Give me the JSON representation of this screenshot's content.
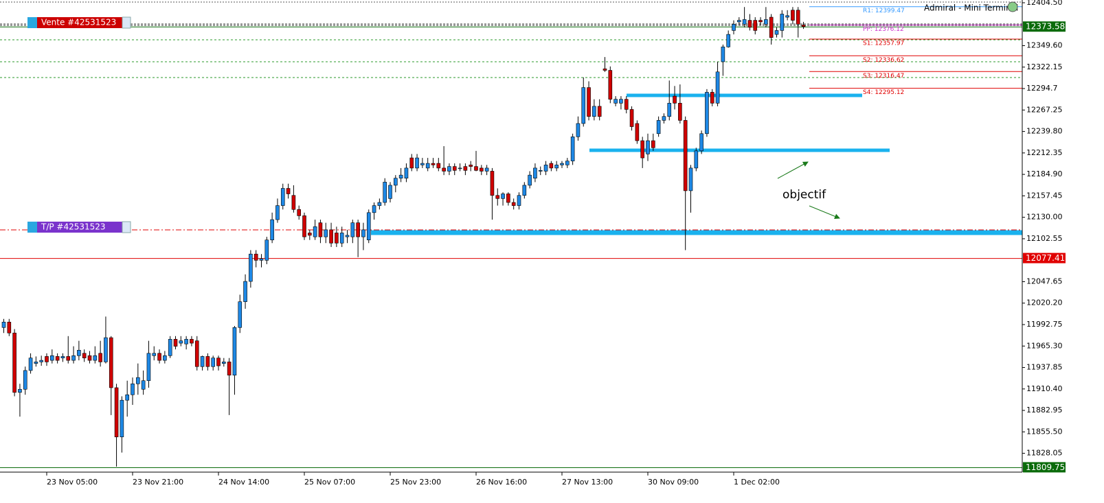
{
  "chart_data": {
    "type": "candlestick",
    "categories": [
      null,
      null,
      null,
      null,
      null,
      null,
      null,
      null,
      "23 Nov 05:00",
      null,
      null,
      null,
      null,
      null,
      null,
      null,
      null,
      null,
      null,
      null,
      null,
      null,
      null,
      null,
      "23 Nov 21:00",
      null,
      null,
      null,
      null,
      null,
      null,
      null,
      null,
      null,
      null,
      null,
      null,
      null,
      null,
      null,
      "24 Nov 14:00",
      null,
      null,
      null,
      null,
      null,
      null,
      null,
      null,
      null,
      null,
      null,
      null,
      null,
      null,
      null,
      "25 Nov 07:00",
      null,
      null,
      null,
      null,
      null,
      null,
      null,
      null,
      null,
      null,
      null,
      null,
      null,
      null,
      null,
      "25 Nov 23:00",
      null,
      null,
      null,
      null,
      null,
      null,
      null,
      null,
      null,
      null,
      null,
      null,
      null,
      null,
      null,
      "26 Nov 16:00",
      null,
      null,
      null,
      null,
      null,
      null,
      null,
      null,
      null,
      null,
      null,
      null,
      null,
      null,
      null,
      "27 Nov 13:00",
      null,
      null,
      null,
      null,
      null,
      null,
      null,
      null,
      null,
      null,
      null,
      null,
      null,
      null,
      null,
      "30 Nov 09:00",
      null,
      null,
      null,
      null,
      null,
      null,
      null,
      null,
      null,
      null,
      null,
      null,
      null,
      null,
      null,
      "1 Dec 02:00",
      null,
      null,
      null,
      null,
      null,
      null,
      null,
      null,
      null,
      null,
      null,
      null,
      null
    ],
    "open": [
      11989,
      11996,
      11982,
      11906,
      11910,
      11934,
      11943,
      11945,
      11952,
      11947,
      11952,
      11950,
      11952,
      11947,
      11953,
      11956,
      11953,
      11947,
      11956,
      11945,
      11976,
      11912,
      11849,
      11896,
      11903,
      11917,
      11910,
      11921,
      11953,
      11956,
      11947,
      11953,
      11974,
      11969,
      11968,
      11974,
      11972,
      11939,
      11952,
      11939,
      11950,
      11943,
      11945,
      11928,
      11989,
      12022,
      12048,
      12083,
      12075,
      12075,
      12101,
      12127,
      12145,
      12167,
      12158,
      12140,
      12132,
      12110,
      12105,
      12123,
      12105,
      12114,
      12110,
      12097,
      12105,
      12105,
      12123,
      12105,
      12101,
      12136,
      12145,
      12149,
      12154,
      12171,
      12180,
      12180,
      12206,
      12193,
      12197,
      12193,
      12199,
      12199,
      12193,
      12189,
      12195,
      12193,
      12195,
      12197,
      12195,
      12193,
      12189,
      12189,
      12158,
      12154,
      12160,
      12149,
      12145,
      12158,
      12171,
      12180,
      12189,
      12189,
      12199,
      12193,
      12197,
      12197,
      12202,
      12233,
      12250,
      12296,
      12259,
      12272,
      12320,
      12318,
      12276,
      12276,
      12281,
      12268,
      12250,
      12228,
      12211,
      12228,
      12237,
      12254,
      12259,
      12285,
      12276,
      12254,
      12164,
      12193,
      12215,
      12237,
      12290,
      12276,
      12329,
      12348,
      12369,
      12380,
      12377,
      12382,
      12382,
      12382,
      12377,
      12386,
      12364,
      12369,
      12386,
      12395,
      12395,
      12376
    ],
    "high": [
      12000,
      12000,
      11987,
      11917,
      11939,
      11956,
      11952,
      11953,
      11956,
      11961,
      11956,
      11956,
      11978,
      11965,
      11972,
      11961,
      11959,
      11965,
      11972,
      12003,
      11978,
      11917,
      11901,
      11921,
      11925,
      11943,
      11934,
      11972,
      11965,
      11961,
      11959,
      11978,
      11978,
      11978,
      11978,
      11978,
      11978,
      11953,
      11956,
      11953,
      11953,
      11950,
      11950,
      11991,
      12031,
      12057,
      12088,
      12088,
      12083,
      12105,
      12136,
      12154,
      12173,
      12173,
      12171,
      12145,
      12136,
      12114,
      12127,
      12127,
      12123,
      12123,
      12118,
      12118,
      12114,
      12127,
      12127,
      12123,
      12140,
      12149,
      12154,
      12180,
      12175,
      12184,
      12193,
      12199,
      12211,
      12211,
      12206,
      12206,
      12206,
      12206,
      12221,
      12199,
      12199,
      12199,
      12199,
      12202,
      12215,
      12197,
      12197,
      12193,
      12167,
      12162,
      12162,
      12154,
      12162,
      12175,
      12189,
      12199,
      12195,
      12202,
      12202,
      12202,
      12202,
      12206,
      12237,
      12259,
      12309,
      12304,
      12281,
      12281,
      12335,
      12323,
      12285,
      12285,
      12285,
      12272,
      12254,
      12233,
      12237,
      12237,
      12259,
      12263,
      12305,
      12298,
      12300,
      12259,
      12197,
      12219,
      12241,
      12294,
      12294,
      12329,
      12351,
      12369,
      12382,
      12386,
      12399,
      12390,
      12386,
      12386,
      12399,
      12390,
      12373,
      12395,
      12395,
      12399,
      12399,
      12380
    ],
    "low": [
      11982,
      11978,
      11901,
      11875,
      11903,
      11930,
      11939,
      11940,
      11940,
      11943,
      11943,
      11945,
      11943,
      11943,
      11947,
      11945,
      11943,
      11943,
      11939,
      11943,
      11877,
      11811,
      11829,
      11875,
      11890,
      11903,
      11903,
      11912,
      11947,
      11943,
      11943,
      11950,
      11961,
      11965,
      11961,
      11965,
      11934,
      11934,
      11934,
      11934,
      11934,
      11939,
      11877,
      11903,
      11982,
      12013,
      12040,
      12066,
      12066,
      12070,
      12097,
      12123,
      12140,
      12154,
      12136,
      12127,
      12101,
      12101,
      12101,
      12097,
      12097,
      12092,
      12092,
      12092,
      12097,
      12097,
      12079,
      12088,
      12097,
      12127,
      12140,
      12145,
      12149,
      12162,
      12175,
      12175,
      12189,
      12189,
      12193,
      12189,
      12193,
      12189,
      12184,
      12184,
      12184,
      12189,
      12184,
      12189,
      12189,
      12184,
      12184,
      12127,
      12145,
      12145,
      12145,
      12140,
      12140,
      12154,
      12167,
      12175,
      12184,
      12184,
      12189,
      12189,
      12193,
      12193,
      12197,
      12228,
      12246,
      12254,
      12254,
      12254,
      12316,
      12276,
      12272,
      12268,
      12263,
      12241,
      12224,
      12193,
      12202,
      12215,
      12233,
      12250,
      12254,
      12268,
      12250,
      12088,
      12136,
      12189,
      12211,
      12233,
      12272,
      12272,
      12311,
      12347,
      12364,
      12376,
      12373,
      12369,
      12364,
      12376,
      12373,
      12351,
      12360,
      12360,
      12382,
      12377,
      12360,
      12371
    ],
    "close": [
      11996,
      11982,
      11906,
      11910,
      11934,
      11950,
      11945,
      11947,
      11945,
      11953,
      11947,
      11952,
      11947,
      11953,
      11960,
      11950,
      11947,
      11953,
      11945,
      11976,
      11912,
      11849,
      11896,
      11903,
      11917,
      11925,
      11921,
      11956,
      11956,
      11947,
      11953,
      11974,
      11965,
      11972,
      11974,
      11969,
      11939,
      11952,
      11939,
      11950,
      11940,
      11945,
      11928,
      11989,
      12022,
      12048,
      12083,
      12075,
      12077,
      12101,
      12127,
      12145,
      12167,
      12160,
      12140,
      12132,
      12105,
      12107,
      12118,
      12105,
      12114,
      12097,
      12097,
      12110,
      12107,
      12123,
      12105,
      12114,
      12136,
      12145,
      12149,
      12175,
      12171,
      12180,
      12184,
      12193,
      12193,
      12206,
      12199,
      12199,
      12197,
      12193,
      12189,
      12195,
      12190,
      12193,
      12190,
      12195,
      12190,
      12189,
      12193,
      12158,
      12154,
      12160,
      12149,
      12145,
      12158,
      12171,
      12184,
      12193,
      12190,
      12197,
      12193,
      12197,
      12199,
      12202,
      12233,
      12250,
      12296,
      12259,
      12272,
      12259,
      12318,
      12281,
      12281,
      12281,
      12268,
      12246,
      12228,
      12206,
      12228,
      12219,
      12254,
      12259,
      12276,
      12276,
      12254,
      12164,
      12193,
      12215,
      12237,
      12290,
      12276,
      12316,
      12348,
      12364,
      12377,
      12382,
      12383,
      12373,
      12369,
      12380,
      12383,
      12360,
      12369,
      12390,
      12388,
      12382,
      12377,
      12374
    ],
    "up_color": "#1e88e5",
    "down_color": "#d00000",
    "ylim": [
      11804,
      12408
    ],
    "yticks": [
      {
        "value": 12404.5,
        "label": "12404.50"
      },
      {
        "value": 12349.6,
        "label": "12349.60"
      },
      12322.15,
      12294.7,
      12267.25,
      {
        "value": 12239.8,
        "label": "12239.80"
      },
      12212.35,
      {
        "value": 12184.9,
        "label": "12184.90"
      },
      12157.45,
      {
        "value": 12130,
        "label": "12130.00"
      },
      12102.55,
      12047.65,
      {
        "value": 12020.2,
        "label": "12020.20"
      },
      11992.75,
      {
        "value": 11965.3,
        "label": "11965.30"
      },
      11937.85,
      {
        "value": 11910.4,
        "label": "11910.40"
      },
      11882.95,
      {
        "value": 11855.5,
        "label": "11855.50"
      },
      11828.05
    ],
    "price_lines": [
      {
        "value": 12373.58,
        "color": "#0b6b0b"
      },
      {
        "value": 12077.41,
        "color": "#e00000"
      },
      {
        "value": 11809.75,
        "color": "#0b6b0b"
      }
    ],
    "pivots": [
      {
        "label": "R1: 12399.47",
        "value": 12399.47,
        "color": "#3399ff"
      },
      {
        "label": "PP: 12376.12",
        "value": 12376.12,
        "color": "#cc33cc"
      },
      {
        "label": "S1: 12357.97",
        "value": 12357.97,
        "color": "#e00000"
      },
      {
        "label": "S2: 12336.62",
        "value": 12336.62,
        "color": "#e00000"
      },
      {
        "label": "S3: 12316.47",
        "value": 12316.47,
        "color": "#e00000"
      },
      {
        "label": "S4: 12295.12",
        "value": 12295.12,
        "color": "#e00000"
      }
    ],
    "orders": [
      "Vente #42531523",
      "T/P #42531523"
    ],
    "annotation": "objectif",
    "terminal": "Admiral - Mini Terminal"
  }
}
